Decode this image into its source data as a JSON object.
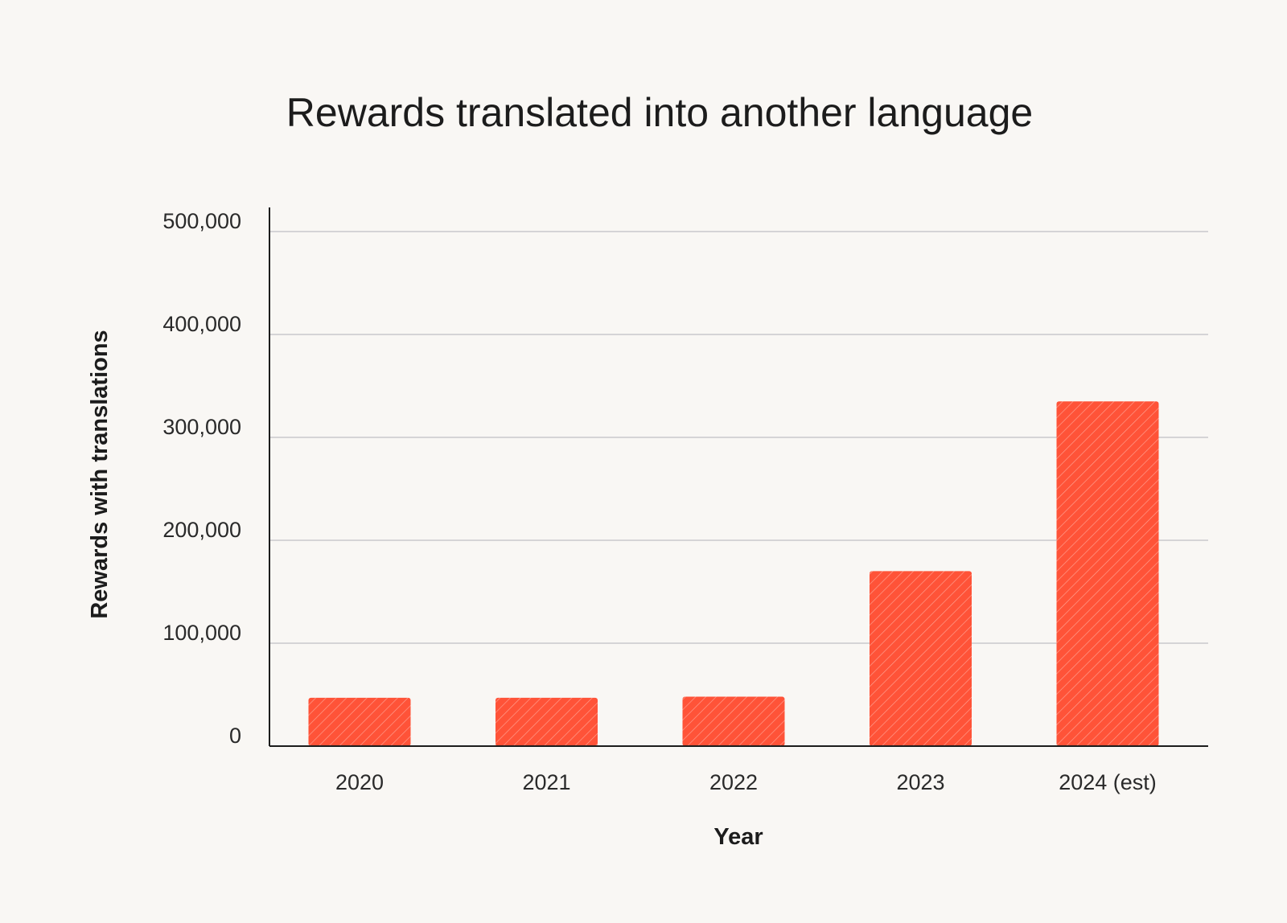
{
  "chart_data": {
    "type": "bar",
    "title": "Rewards translated into another language",
    "xlabel": "Year",
    "ylabel": "Rewards with translations",
    "categories": [
      "2020",
      "2021",
      "2022",
      "2023",
      "2024 (est)"
    ],
    "values": [
      47000,
      47000,
      48000,
      170000,
      335000
    ],
    "ylim": [
      0,
      500000
    ],
    "yticks": [
      0,
      100000,
      200000,
      300000,
      400000,
      500000
    ],
    "ytick_labels": [
      "0",
      "100,000",
      "200,000",
      "300,000",
      "400,000",
      "500,000"
    ],
    "grid": true,
    "bar_color": "#ff5338",
    "grid_color": "#c9c9cc",
    "axis_color": "#1c1c1c"
  }
}
